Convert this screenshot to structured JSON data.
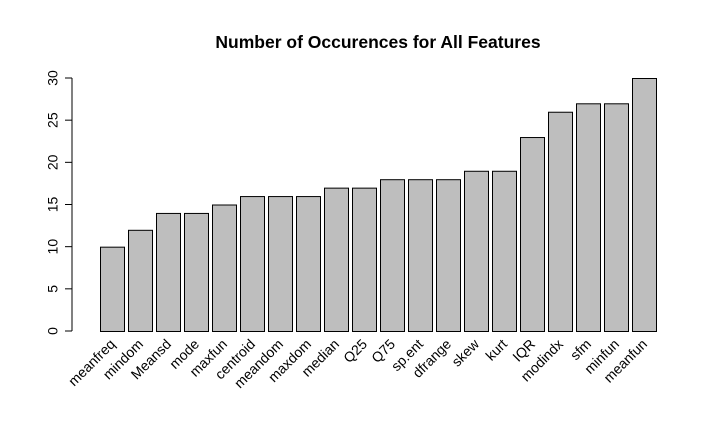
{
  "chart_data": {
    "type": "bar",
    "title": "Number of Occurences for All Features",
    "xlabel": "",
    "ylabel": "",
    "categories": [
      "meanfreq",
      "mindom",
      "Meansd",
      "mode",
      "maxfun",
      "centroid",
      "meandom",
      "maxdom",
      "median",
      "Q25",
      "Q75",
      "sp.ent",
      "dfrange",
      "skew",
      "kurt",
      "IQR",
      "modindx",
      "sfm",
      "minfun",
      "meanfun"
    ],
    "values": [
      10,
      12,
      14,
      14,
      15,
      16,
      16,
      16,
      17,
      17,
      18,
      18,
      18,
      19,
      19,
      23,
      26,
      27,
      27,
      30
    ],
    "yticks": [
      0,
      5,
      10,
      15,
      20,
      25,
      30
    ],
    "ylim": [
      0,
      30
    ],
    "bar_color": "#bebebe",
    "bar_edge_color": "#000000",
    "grid": false,
    "legend": "none"
  }
}
